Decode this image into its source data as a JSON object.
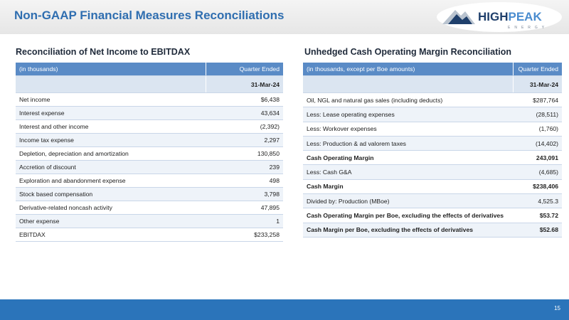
{
  "header": {
    "title": "Non-GAAP Financial Measures Reconciliations",
    "logo": {
      "first": "HIGH",
      "second": "PEAK",
      "tagline": "ENERGY"
    }
  },
  "left_table": {
    "title": "Reconciliation of Net Income to EBITDAX",
    "columns": [
      "(in thousands)",
      "Quarter Ended"
    ],
    "period": "31-Mar-24",
    "rows": [
      [
        "Net income",
        "$6,438"
      ],
      [
        "Interest expense",
        "43,634"
      ],
      [
        "Interest and other income",
        "(2,392)"
      ],
      [
        "Income tax expense",
        "2,297"
      ],
      [
        "Depletion, depreciation and amortization",
        "130,850"
      ],
      [
        "Accretion of discount",
        "239"
      ],
      [
        "Exploration and abandonment expense",
        "498"
      ],
      [
        "Stock based compensation",
        "3,798"
      ],
      [
        "Derivative-related noncash activity",
        "47,895"
      ],
      [
        "Other expense",
        "1"
      ],
      [
        "EBITDAX",
        "$233,258"
      ]
    ]
  },
  "right_table": {
    "title": "Unhedged Cash Operating Margin Reconciliation",
    "columns": [
      "(in thousands, except per Boe amounts)",
      "Quarter Ended"
    ],
    "period": "31-Mar-24",
    "rows": [
      [
        "Oil, NGL and natural gas sales (including deducts)",
        "$287,764"
      ],
      [
        "Less: Lease operating expenses",
        "(28,511)"
      ],
      [
        "Less: Workover expenses",
        "(1,760)"
      ],
      [
        "Less: Production & ad valorem taxes",
        "(14,402)"
      ],
      [
        "Cash Operating Margin",
        "243,091"
      ],
      [
        "Less: Cash G&A",
        "(4,685)"
      ],
      [
        "Cash Margin",
        "$238,406"
      ],
      [
        "Divided by: Production (MBoe)",
        "4,525.3"
      ],
      [
        "Cash Operating Margin per Boe, excluding the effects of derivatives",
        "$53.72"
      ],
      [
        "Cash Margin per Boe, excluding the effects of derivatives",
        "$52.68"
      ]
    ]
  },
  "footer": {
    "page": "15"
  }
}
